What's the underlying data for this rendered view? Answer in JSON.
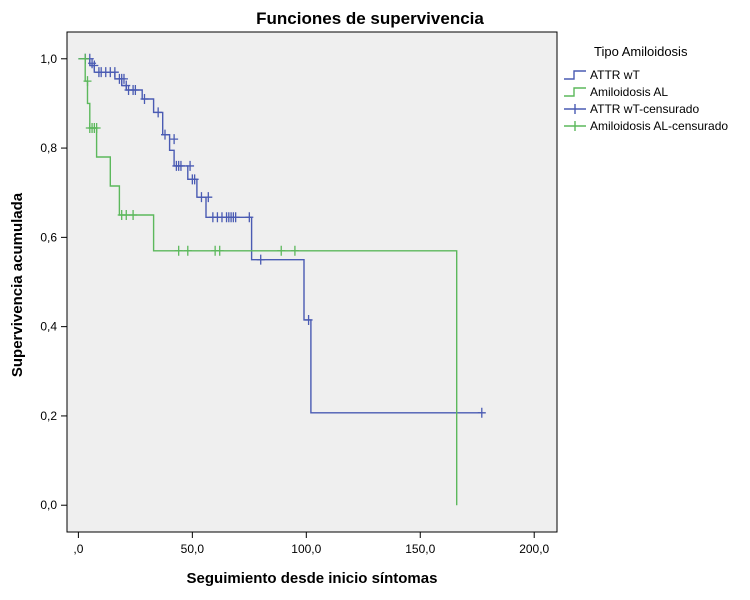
{
  "chart_data": {
    "type": "line",
    "title": "Funciones de supervivencia",
    "xlabel": "Seguimiento desde inicio síntomas",
    "ylabel": "Supervivencia acumulada",
    "xlim": [
      -5,
      210
    ],
    "ylim": [
      -0.06,
      1.06
    ],
    "x_ticks": [
      0,
      50,
      100,
      150,
      200
    ],
    "x_tick_labels": [
      ",0",
      "50,0",
      "100,0",
      "150,0",
      "200,0"
    ],
    "y_ticks": [
      0,
      0.2,
      0.4,
      0.6,
      0.8,
      1.0
    ],
    "y_tick_labels": [
      "0,0",
      "0,2",
      "0,4",
      "0,6",
      "0,8",
      "1,0"
    ],
    "grid": false,
    "legend": {
      "title": "Tipo Amiloidosis",
      "placement": "right",
      "entries": [
        {
          "label": "ATTR wT",
          "kind": "step",
          "color": "#4a5bb3"
        },
        {
          "label": "Amiloidosis AL",
          "kind": "step",
          "color": "#5cb85c"
        },
        {
          "label": "ATTR wT-censurado",
          "kind": "censor",
          "color": "#4a5bb3"
        },
        {
          "label": "Amiloidosis AL-censurado",
          "kind": "censor",
          "color": "#5cb85c"
        }
      ]
    },
    "series": [
      {
        "name": "ATTR wT",
        "color": "#4a5bb3",
        "steps": [
          [
            0,
            1.0
          ],
          [
            5,
            0.985
          ],
          [
            7,
            0.97
          ],
          [
            16,
            0.955
          ],
          [
            19,
            0.94
          ],
          [
            21,
            0.93
          ],
          [
            28,
            0.91
          ],
          [
            33,
            0.88
          ],
          [
            37,
            0.83
          ],
          [
            40,
            0.795
          ],
          [
            42,
            0.76
          ],
          [
            48,
            0.73
          ],
          [
            52,
            0.69
          ],
          [
            56,
            0.645
          ],
          [
            76,
            0.55
          ],
          [
            99,
            0.415
          ],
          [
            102,
            0.207
          ],
          [
            177,
            0.207
          ]
        ],
        "censored": [
          [
            3,
            1.0
          ],
          [
            5,
            1.0
          ],
          [
            6,
            0.99
          ],
          [
            7,
            0.985
          ],
          [
            9,
            0.97
          ],
          [
            10,
            0.97
          ],
          [
            12,
            0.97
          ],
          [
            14,
            0.97
          ],
          [
            16,
            0.97
          ],
          [
            18,
            0.955
          ],
          [
            19,
            0.955
          ],
          [
            20,
            0.955
          ],
          [
            21,
            0.94
          ],
          [
            22,
            0.93
          ],
          [
            24,
            0.93
          ],
          [
            25,
            0.93
          ],
          [
            29,
            0.91
          ],
          [
            35,
            0.88
          ],
          [
            38,
            0.83
          ],
          [
            42,
            0.82
          ],
          [
            43,
            0.76
          ],
          [
            44,
            0.76
          ],
          [
            45,
            0.76
          ],
          [
            49,
            0.76
          ],
          [
            50,
            0.73
          ],
          [
            51,
            0.73
          ],
          [
            54,
            0.69
          ],
          [
            57,
            0.69
          ],
          [
            59,
            0.645
          ],
          [
            61,
            0.645
          ],
          [
            63,
            0.645
          ],
          [
            65,
            0.645
          ],
          [
            66,
            0.645
          ],
          [
            67,
            0.645
          ],
          [
            68,
            0.645
          ],
          [
            69,
            0.645
          ],
          [
            75,
            0.645
          ],
          [
            80,
            0.55
          ],
          [
            101,
            0.415
          ],
          [
            177,
            0.207
          ]
        ]
      },
      {
        "name": "Amiloidosis AL",
        "color": "#5cb85c",
        "steps": [
          [
            0,
            1.0
          ],
          [
            3,
            0.95
          ],
          [
            4,
            0.9
          ],
          [
            5,
            0.845
          ],
          [
            8,
            0.78
          ],
          [
            14,
            0.715
          ],
          [
            18,
            0.65
          ],
          [
            33,
            0.57
          ],
          [
            166,
            0.57
          ],
          [
            166,
            0.0
          ]
        ],
        "censored": [
          [
            3,
            1.0
          ],
          [
            4,
            0.95
          ],
          [
            5,
            0.845
          ],
          [
            6,
            0.845
          ],
          [
            7,
            0.845
          ],
          [
            8,
            0.845
          ],
          [
            19,
            0.65
          ],
          [
            21,
            0.65
          ],
          [
            24,
            0.65
          ],
          [
            44,
            0.57
          ],
          [
            48,
            0.57
          ],
          [
            60,
            0.57
          ],
          [
            62,
            0.57
          ],
          [
            89,
            0.57
          ],
          [
            95,
            0.57
          ]
        ]
      }
    ]
  }
}
